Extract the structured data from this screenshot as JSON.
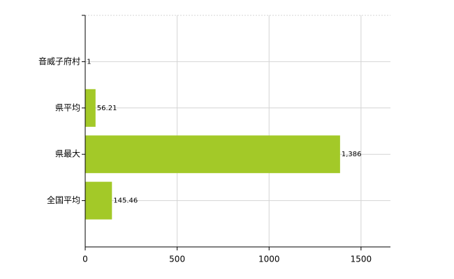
{
  "chart_data": {
    "type": "barh",
    "categories": [
      "音威子府村",
      "県平均",
      "県最大",
      "全国平均"
    ],
    "values": [
      1,
      56.21,
      1386,
      145.46
    ],
    "value_labels": [
      "1",
      "56.21",
      "1,386",
      "145.46"
    ],
    "color": "#a3c928",
    "xlim": [
      0,
      1660
    ],
    "xticks": [
      0,
      500,
      1000,
      1500
    ],
    "grid": true
  }
}
